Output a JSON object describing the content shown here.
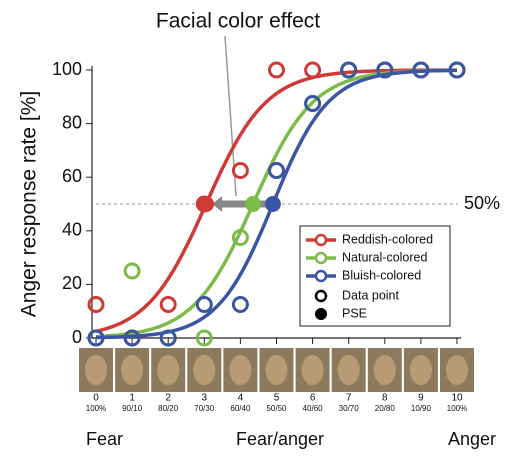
{
  "chart_data": {
    "type": "line",
    "title": "Facial color effect",
    "y_label": "Anger response rate [%]",
    "reference_label": "50%",
    "reference_value": 50,
    "x": [
      0,
      1,
      2,
      3,
      4,
      5,
      6,
      7,
      8,
      9,
      10
    ],
    "xlim": [
      0,
      10
    ],
    "xticks": [
      0,
      1,
      2,
      3,
      4,
      5,
      6,
      7,
      8,
      9,
      10
    ],
    "mix_labels": [
      "100%",
      "90/10",
      "80/20",
      "70/30",
      "60/40",
      "50/50",
      "40/60",
      "30/70",
      "20/80",
      "10/90",
      "100%"
    ],
    "continuum_labels": [
      "Fear",
      "Fear/anger",
      "Anger"
    ],
    "ylim": [
      0,
      100
    ],
    "yticks": [
      0,
      20,
      40,
      60,
      80,
      100
    ],
    "series": [
      {
        "name": "Reddish-colored",
        "color": "#d03a36",
        "values": [
          12.5,
          0,
          12.5,
          50,
          62.5,
          100,
          100,
          100,
          100,
          100,
          100
        ],
        "pse": 3.05,
        "slope": 1.2
      },
      {
        "name": "Natural-colored",
        "color": "#7cbb48",
        "values": [
          0,
          25,
          0,
          0,
          37.5,
          62.5,
          87.5,
          100,
          100,
          100,
          100
        ],
        "pse": 4.35,
        "slope": 1.2
      },
      {
        "name": "Bluish-colored",
        "color": "#3a55a3",
        "values": [
          0,
          0,
          0,
          12.5,
          12.5,
          62.5,
          87.5,
          100,
          100,
          100,
          100
        ],
        "pse": 4.9,
        "slope": 1.3
      }
    ],
    "legend_extra": [
      "Data point",
      "PSE"
    ]
  }
}
